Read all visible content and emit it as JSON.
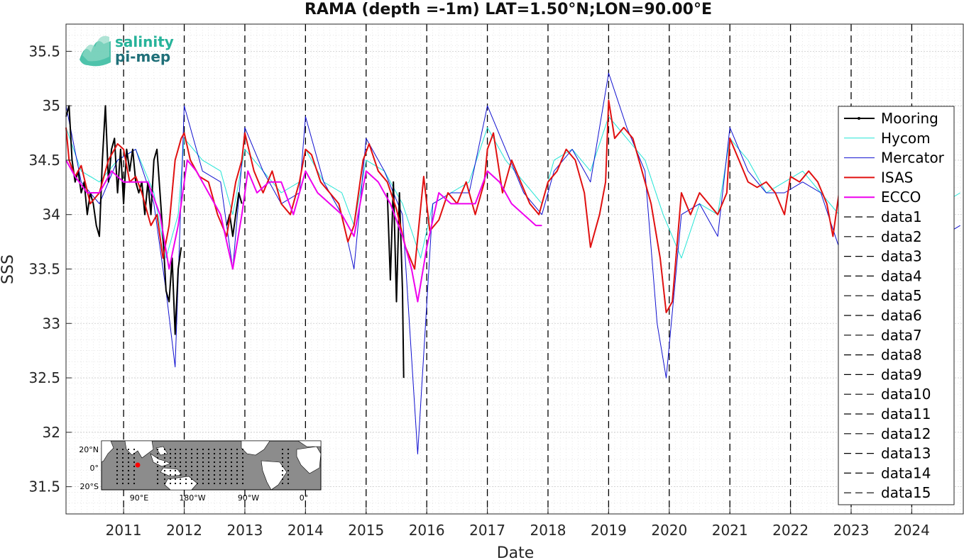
{
  "chart_data": {
    "type": "line",
    "title": "RAMA (depth =-1m) LAT=1.50°N;LON=90.00°E",
    "xlabel": "Date",
    "ylabel": "SSS",
    "xlim": [
      2010.05,
      2024.85
    ],
    "ylim": [
      31.25,
      35.75
    ],
    "x_ticks": [
      2011,
      2012,
      2013,
      2014,
      2015,
      2016,
      2017,
      2018,
      2019,
      2020,
      2021,
      2022,
      2023,
      2024
    ],
    "y_ticks": [
      31.5,
      32,
      32.5,
      33,
      33.5,
      34,
      34.5,
      35,
      35.5
    ],
    "grid": true,
    "legend_position": "right",
    "vlines": [
      2011,
      2012,
      2013,
      2014,
      2015,
      2016,
      2017,
      2018,
      2019,
      2020,
      2021,
      2022,
      2023,
      2024
    ],
    "series": [
      {
        "name": "Mooring",
        "color": "#000000",
        "width": 2.0,
        "segments": [
          {
            "x": [
              2010.05,
              2010.1,
              2010.15,
              2010.2,
              2010.25,
              2010.3,
              2010.35,
              2010.4,
              2010.45,
              2010.5,
              2010.55,
              2010.6,
              2010.65,
              2010.7,
              2010.75,
              2010.8,
              2010.85,
              2010.9,
              2010.95,
              2011.0,
              2011.05,
              2011.1,
              2011.15,
              2011.2,
              2011.25,
              2011.3,
              2011.35,
              2011.4,
              2011.45,
              2011.5,
              2011.55,
              2011.6,
              2011.65,
              2011.7,
              2011.75,
              2011.8,
              2011.85,
              2011.9,
              2011.95
            ],
            "y": [
              34.9,
              35.0,
              34.5,
              34.3,
              34.4,
              34.2,
              34.3,
              34.0,
              34.2,
              34.1,
              33.9,
              33.8,
              34.5,
              35.0,
              34.3,
              34.6,
              34.7,
              34.2,
              34.6,
              34.1,
              34.6,
              34.4,
              34.6,
              34.3,
              34.2,
              34.3,
              34.0,
              34.3,
              34.0,
              34.5,
              34.6,
              34.2,
              33.8,
              33.3,
              33.2,
              33.6,
              32.9,
              33.5,
              33.7
            ]
          },
          {
            "x": [
              2012.7,
              2012.75,
              2012.8,
              2012.85,
              2012.9,
              2012.95
            ],
            "y": [
              33.9,
              34.0,
              33.8,
              34.0,
              34.2,
              34.1
            ]
          },
          {
            "x": [
              2015.35,
              2015.4,
              2015.45,
              2015.5,
              2015.55,
              2015.6,
              2015.62
            ],
            "y": [
              34.2,
              33.4,
              34.3,
              33.2,
              34.2,
              33.3,
              32.5
            ]
          }
        ]
      },
      {
        "name": "Hycom",
        "color": "#22e5d6",
        "width": 1.0,
        "x": [
          2010.05,
          2010.3,
          2010.6,
          2010.9,
          2011.2,
          2011.5,
          2011.7,
          2011.9,
          2012.0,
          2012.3,
          2012.6,
          2012.8,
          2013.0,
          2013.3,
          2013.6,
          2013.9,
          2014.0,
          2014.3,
          2014.6,
          2014.8,
          2015.0,
          2015.3,
          2015.6,
          2015.9,
          2016.1,
          2016.4,
          2016.7,
          2017.0,
          2017.3,
          2017.6,
          2017.9,
          2018.1,
          2018.4,
          2018.7,
          2019.0,
          2019.3,
          2019.6,
          2019.9,
          2020.2,
          2020.5,
          2020.8,
          2021.0,
          2021.3,
          2021.6,
          2021.9,
          2022.2,
          2022.5,
          2022.8,
          2023.0,
          2023.3,
          2023.6,
          2023.9,
          2024.2,
          2024.5,
          2024.8
        ],
        "y": [
          34.8,
          34.4,
          34.3,
          34.5,
          34.6,
          34.2,
          33.6,
          34.0,
          34.7,
          34.5,
          34.4,
          34.0,
          34.6,
          34.4,
          34.2,
          34.3,
          34.6,
          34.3,
          34.2,
          33.9,
          34.5,
          34.4,
          34.1,
          33.6,
          34.1,
          34.2,
          34.3,
          34.8,
          34.5,
          34.3,
          34.1,
          34.5,
          34.6,
          34.4,
          34.9,
          34.7,
          34.5,
          34.0,
          33.6,
          34.1,
          34.0,
          34.7,
          34.5,
          34.2,
          34.3,
          34.4,
          34.2,
          34.0,
          34.6,
          34.3,
          34.1,
          34.4,
          34.2,
          34.1,
          34.2
        ]
      },
      {
        "name": "Mercator",
        "color": "#1010d0",
        "width": 1.0,
        "x": [
          2010.05,
          2010.3,
          2010.6,
          2010.9,
          2011.2,
          2011.5,
          2011.7,
          2011.85,
          2012.0,
          2012.3,
          2012.6,
          2012.8,
          2013.0,
          2013.3,
          2013.6,
          2013.9,
          2014.0,
          2014.3,
          2014.6,
          2014.8,
          2015.0,
          2015.3,
          2015.6,
          2015.85,
          2016.1,
          2016.4,
          2016.7,
          2017.0,
          2017.3,
          2017.6,
          2017.9,
          2018.1,
          2018.4,
          2018.7,
          2019.0,
          2019.3,
          2019.6,
          2019.8,
          2019.95,
          2020.2,
          2020.5,
          2020.8,
          2021.0,
          2021.3,
          2021.6,
          2021.9,
          2022.2,
          2022.5,
          2022.8,
          2023.0,
          2023.3,
          2023.6,
          2023.9,
          2024.2,
          2024.5,
          2024.8
        ],
        "y": [
          35.0,
          34.3,
          34.1,
          34.5,
          34.6,
          34.1,
          33.3,
          32.6,
          35.0,
          34.4,
          34.3,
          33.5,
          34.8,
          34.4,
          34.1,
          34.2,
          34.9,
          34.3,
          34.0,
          33.5,
          34.7,
          34.4,
          34.0,
          31.8,
          34.1,
          34.2,
          34.2,
          35.0,
          34.6,
          34.2,
          34.0,
          34.4,
          34.6,
          34.3,
          35.3,
          34.8,
          34.4,
          33.0,
          32.5,
          34.0,
          34.1,
          33.8,
          34.8,
          34.4,
          34.2,
          34.2,
          34.3,
          34.2,
          33.7,
          34.7,
          34.2,
          34.0,
          34.3,
          34.0,
          33.8,
          33.9
        ]
      },
      {
        "name": "ISAS",
        "color": "#e01010",
        "width": 2.0,
        "x": [
          2010.05,
          2010.1,
          2010.2,
          2010.3,
          2010.45,
          2010.6,
          2010.75,
          2010.9,
          2011.0,
          2011.1,
          2011.2,
          2011.3,
          2011.45,
          2011.55,
          2011.65,
          2011.75,
          2011.85,
          2011.95,
          2012.0,
          2012.1,
          2012.25,
          2012.4,
          2012.55,
          2012.7,
          2012.85,
          2012.95,
          2013.0,
          2013.15,
          2013.3,
          2013.45,
          2013.6,
          2013.75,
          2013.9,
          2014.0,
          2014.1,
          2014.25,
          2014.4,
          2014.55,
          2014.7,
          2014.8,
          2014.95,
          2015.05,
          2015.2,
          2015.35,
          2015.5,
          2015.65,
          2015.8,
          2015.95,
          2016.05,
          2016.2,
          2016.35,
          2016.5,
          2016.65,
          2016.8,
          2016.95,
          2017.0,
          2017.1,
          2017.25,
          2017.4,
          2017.55,
          2017.7,
          2017.85,
          2018.0,
          2018.15,
          2018.3,
          2018.45,
          2018.6,
          2018.7,
          2018.85,
          2018.95,
          2019.0,
          2019.1,
          2019.25,
          2019.4,
          2019.55,
          2019.7,
          2019.85,
          2019.95,
          2020.05,
          2020.2,
          2020.35,
          2020.5,
          2020.65,
          2020.8,
          2020.95,
          2021.0,
          2021.15,
          2021.3,
          2021.45,
          2021.6,
          2021.75,
          2021.9,
          2022.0,
          2022.15,
          2022.3,
          2022.45,
          2022.6,
          2022.7,
          2022.8
        ],
        "y": [
          34.8,
          34.5,
          34.35,
          34.45,
          34.1,
          34.2,
          34.5,
          34.65,
          34.6,
          34.3,
          34.35,
          34.2,
          33.9,
          34.0,
          33.6,
          33.9,
          34.5,
          34.7,
          34.75,
          34.5,
          34.35,
          34.3,
          34.0,
          33.8,
          34.3,
          34.5,
          34.75,
          34.4,
          34.2,
          34.4,
          34.1,
          34.0,
          34.3,
          34.6,
          34.55,
          34.3,
          34.2,
          34.1,
          33.75,
          33.9,
          34.5,
          34.65,
          34.4,
          34.3,
          34.05,
          33.7,
          33.5,
          34.35,
          33.85,
          33.95,
          34.2,
          34.1,
          34.3,
          34.0,
          34.3,
          34.6,
          34.75,
          34.2,
          34.5,
          34.3,
          34.1,
          34.0,
          34.3,
          34.4,
          34.6,
          34.5,
          34.2,
          33.7,
          34.0,
          34.3,
          35.05,
          34.7,
          34.8,
          34.7,
          34.4,
          34.1,
          33.6,
          33.1,
          33.2,
          34.2,
          34.0,
          34.2,
          34.1,
          34.0,
          34.2,
          34.7,
          34.5,
          34.3,
          34.25,
          34.3,
          34.2,
          34.0,
          34.35,
          34.3,
          34.4,
          34.3,
          34.1,
          33.8,
          34.2
        ]
      },
      {
        "name": "ECCO",
        "color": "#ee00ee",
        "width": 2.0,
        "x": [
          2010.05,
          2010.2,
          2010.4,
          2010.6,
          2010.8,
          2011.0,
          2011.2,
          2011.4,
          2011.6,
          2011.75,
          2011.9,
          2012.05,
          2012.2,
          2012.4,
          2012.6,
          2012.8,
          2012.95,
          2013.05,
          2013.2,
          2013.4,
          2013.6,
          2013.8,
          2014.0,
          2014.2,
          2014.4,
          2014.6,
          2014.8,
          2015.0,
          2015.2,
          2015.4,
          2015.6,
          2015.75,
          2015.85,
          2016.0,
          2016.2,
          2016.4,
          2016.6,
          2016.8,
          2017.0,
          2017.2,
          2017.4,
          2017.6,
          2017.8,
          2017.9
        ],
        "y": [
          34.5,
          34.35,
          34.2,
          34.2,
          34.4,
          34.3,
          34.3,
          34.3,
          34.0,
          33.5,
          33.9,
          34.5,
          34.4,
          34.2,
          34.0,
          33.5,
          34.0,
          34.4,
          34.2,
          34.3,
          34.3,
          34.0,
          34.4,
          34.2,
          34.1,
          34.0,
          33.8,
          34.4,
          34.3,
          34.1,
          33.8,
          33.5,
          33.2,
          33.7,
          34.2,
          34.1,
          34.1,
          34.1,
          34.4,
          34.3,
          34.1,
          34.0,
          33.9,
          33.9
        ]
      }
    ],
    "placeholder_series": [
      "data1",
      "data2",
      "data3",
      "data4",
      "data5",
      "data6",
      "data7",
      "data8",
      "data9",
      "data10",
      "data11",
      "data12",
      "data13",
      "data14",
      "data15"
    ]
  },
  "logo": {
    "line1": "salinity",
    "line2": "pi-mep",
    "color1": "#27b39a",
    "color2": "#1f6f78"
  },
  "inset_map": {
    "lat_labels": [
      "20°N",
      "0°",
      "20°S"
    ],
    "lon_labels": [
      "90°E",
      "180°W",
      "90°W",
      "0°"
    ],
    "ocean_color": "#8c8c8c",
    "land_color": "#ffffff",
    "marker_color": "#ff0000"
  }
}
